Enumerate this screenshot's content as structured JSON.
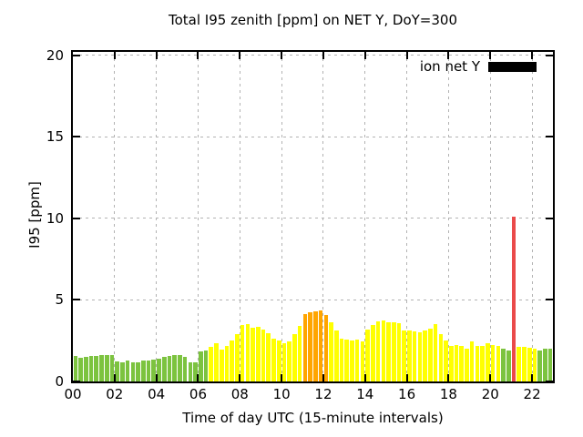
{
  "title": "Total I95 zenith [ppm] on NET Y, DoY=300",
  "chart_data": {
    "type": "bar",
    "title": "Total I95 zenith [ppm] on NET Y, DoY=300",
    "xlabel": "Time of day UTC (15-minute intervals)",
    "ylabel": "I95 [ppm]",
    "ylim": [
      0,
      20
    ],
    "xlim_hours": [
      0,
      23
    ],
    "bar_interval_minutes": 15,
    "grid": true,
    "legend": {
      "position": "top-right",
      "entries": [
        {
          "label": "ion net Y",
          "swatch_color": "#000000"
        }
      ]
    },
    "ytick_labels": [
      "0",
      "5",
      "10",
      "15",
      "20"
    ],
    "ytick_values": [
      0,
      5,
      10,
      15,
      20
    ],
    "xtick_labels": [
      "00",
      "02",
      "04",
      "06",
      "08",
      "10",
      "12",
      "14",
      "16",
      "18",
      "20",
      "22"
    ],
    "xtick_hours": [
      0,
      2,
      4,
      6,
      8,
      10,
      12,
      14,
      16,
      18,
      20,
      22
    ],
    "palette": {
      "g": "#7cc33f",
      "y": "#ffff00",
      "o": "#ffa500",
      "r": "#ea4a4a"
    },
    "categories": [
      "00:00",
      "00:15",
      "00:30",
      "00:45",
      "01:00",
      "01:15",
      "01:30",
      "01:45",
      "02:00",
      "02:15",
      "02:30",
      "02:45",
      "03:00",
      "03:15",
      "03:30",
      "03:45",
      "04:00",
      "04:15",
      "04:30",
      "04:45",
      "05:00",
      "05:15",
      "05:30",
      "05:45",
      "06:00",
      "06:15",
      "06:30",
      "06:45",
      "07:00",
      "07:15",
      "07:30",
      "07:45",
      "08:00",
      "08:15",
      "08:30",
      "08:45",
      "09:00",
      "09:15",
      "09:30",
      "09:45",
      "10:00",
      "10:15",
      "10:30",
      "10:45",
      "11:00",
      "11:15",
      "11:30",
      "11:45",
      "12:00",
      "12:15",
      "12:30",
      "12:45",
      "13:00",
      "13:15",
      "13:30",
      "13:45",
      "14:00",
      "14:15",
      "14:30",
      "14:45",
      "15:00",
      "15:15",
      "15:30",
      "15:45",
      "16:00",
      "16:15",
      "16:30",
      "16:45",
      "17:00",
      "17:15",
      "17:30",
      "17:45",
      "18:00",
      "18:15",
      "18:30",
      "18:45",
      "19:00",
      "19:15",
      "19:30",
      "19:45",
      "20:00",
      "20:15",
      "20:30",
      "20:45",
      "21:00",
      "21:15",
      "21:30",
      "21:45",
      "22:00",
      "22:15",
      "22:30",
      "22:45"
    ],
    "values": [
      1.55,
      1.45,
      1.5,
      1.55,
      1.55,
      1.6,
      1.6,
      1.6,
      1.25,
      1.2,
      1.3,
      1.2,
      1.2,
      1.3,
      1.3,
      1.35,
      1.4,
      1.5,
      1.55,
      1.6,
      1.6,
      1.5,
      1.15,
      1.2,
      1.85,
      1.9,
      2.1,
      2.35,
      1.95,
      2.2,
      2.5,
      2.9,
      3.45,
      3.5,
      3.3,
      3.35,
      3.2,
      2.95,
      2.6,
      2.5,
      2.35,
      2.45,
      2.9,
      3.4,
      4.15,
      4.25,
      4.3,
      4.35,
      4.05,
      3.65,
      3.15,
      2.6,
      2.55,
      2.5,
      2.55,
      2.45,
      3.2,
      3.45,
      3.7,
      3.75,
      3.65,
      3.65,
      3.55,
      3.15,
      3.1,
      3.05,
      3.0,
      3.1,
      3.25,
      3.5,
      2.9,
      2.5,
      2.2,
      2.25,
      2.2,
      2.0,
      2.45,
      2.2,
      2.15,
      2.35,
      2.25,
      2.15,
      2.0,
      1.9,
      10.1,
      2.1,
      2.1,
      2.05,
      2.0,
      1.9,
      2.0,
      2.0
    ],
    "colors": [
      "g",
      "g",
      "g",
      "g",
      "g",
      "g",
      "g",
      "g",
      "g",
      "g",
      "g",
      "g",
      "g",
      "g",
      "g",
      "g",
      "g",
      "g",
      "g",
      "g",
      "g",
      "g",
      "g",
      "g",
      "g",
      "g",
      "y",
      "y",
      "y",
      "y",
      "y",
      "y",
      "y",
      "y",
      "y",
      "y",
      "y",
      "y",
      "y",
      "y",
      "y",
      "y",
      "y",
      "y",
      "o",
      "o",
      "o",
      "o",
      "o",
      "y",
      "y",
      "y",
      "y",
      "y",
      "y",
      "y",
      "y",
      "y",
      "y",
      "y",
      "y",
      "y",
      "y",
      "y",
      "y",
      "y",
      "y",
      "y",
      "y",
      "y",
      "y",
      "y",
      "y",
      "y",
      "y",
      "y",
      "y",
      "y",
      "y",
      "y",
      "y",
      "y",
      "g",
      "g",
      "r",
      "y",
      "y",
      "y",
      "y",
      "g",
      "g",
      "g"
    ]
  }
}
